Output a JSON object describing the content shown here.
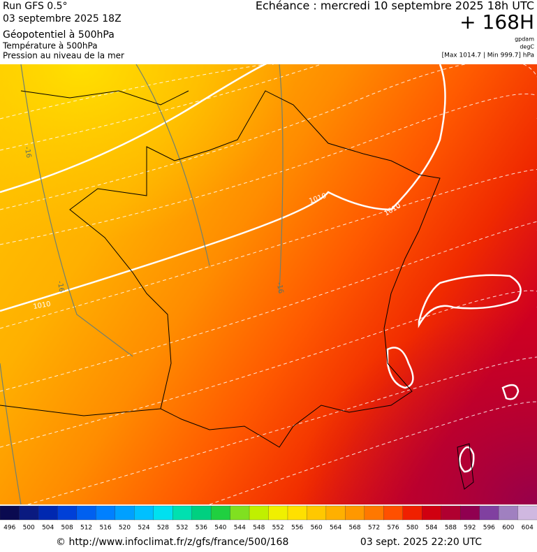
{
  "header": {
    "run": "Run GFS 0.5°",
    "run_date": "03 septembre 2025 18Z",
    "layer1": "Géopotentiel à 500hPa",
    "layer2": "Température à 500hPa",
    "layer3": "Pression au niveau de la mer",
    "echeance": "Echéance : mercredi 10 septembre 2025 18h UTC",
    "lead": "+ 168H",
    "unit1": "gpdam",
    "unit2": "degC",
    "pressure_range": "[Max 1014.7 | Min 999.7] hPa"
  },
  "map": {
    "contour_labels": [
      "1010",
      "1010",
      "1010",
      "-16",
      "-16",
      "-16"
    ]
  },
  "scale": [
    {
      "label": 496,
      "color": "#0a0a50"
    },
    {
      "label": 500,
      "color": "#0a1a80"
    },
    {
      "label": 504,
      "color": "#0028b0"
    },
    {
      "label": 508,
      "color": "#0040d8"
    },
    {
      "label": 512,
      "color": "#0060f0"
    },
    {
      "label": 516,
      "color": "#0080ff"
    },
    {
      "label": 520,
      "color": "#00a0ff"
    },
    {
      "label": 524,
      "color": "#00c0ff"
    },
    {
      "label": 528,
      "color": "#00e0f0"
    },
    {
      "label": 532,
      "color": "#00e0b0"
    },
    {
      "label": 536,
      "color": "#00d080"
    },
    {
      "label": 540,
      "color": "#20d040"
    },
    {
      "label": 544,
      "color": "#80e020"
    },
    {
      "label": 548,
      "color": "#c0f000"
    },
    {
      "label": 552,
      "color": "#f0f000"
    },
    {
      "label": 556,
      "color": "#ffe000"
    },
    {
      "label": 560,
      "color": "#ffc800"
    },
    {
      "label": 564,
      "color": "#ffb000"
    },
    {
      "label": 568,
      "color": "#ff9800"
    },
    {
      "label": 572,
      "color": "#ff7800"
    },
    {
      "label": 576,
      "color": "#ff5000"
    },
    {
      "label": 580,
      "color": "#f02000"
    },
    {
      "label": 584,
      "color": "#d00010"
    },
    {
      "label": 588,
      "color": "#b00030"
    },
    {
      "label": 592,
      "color": "#900050"
    },
    {
      "label": 596,
      "color": "#8040a0"
    },
    {
      "label": 600,
      "color": "#a080c0"
    },
    {
      "label": 604,
      "color": "#d0b8e0"
    }
  ],
  "footer": {
    "url": "© http://www.infoclimat.fr/z/gfs/france/500/168",
    "generated": "03 sept. 2025 22:20 UTC"
  }
}
